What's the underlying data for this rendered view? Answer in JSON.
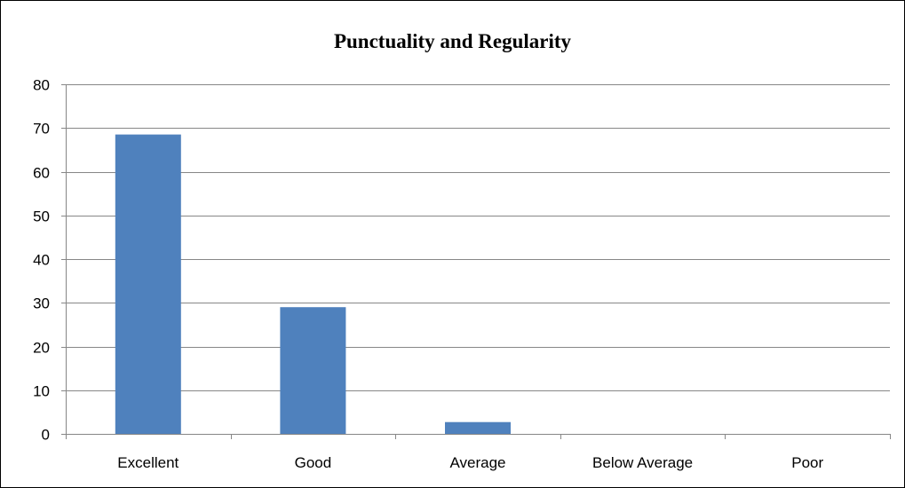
{
  "chart_data": {
    "type": "bar",
    "title": "Punctuality and Regularity",
    "xlabel": "",
    "ylabel": "",
    "categories": [
      "Excellent",
      "Good",
      "Average",
      "Below Average",
      "Poor"
    ],
    "values": [
      68.5,
      29,
      2.7,
      0,
      0
    ],
    "ylim": [
      0,
      80
    ],
    "yticks": [
      0,
      10,
      20,
      30,
      40,
      50,
      60,
      70,
      80
    ],
    "grid": true,
    "legend": "none",
    "bar_color": "#4f81bd",
    "grid_color": "#878787"
  }
}
